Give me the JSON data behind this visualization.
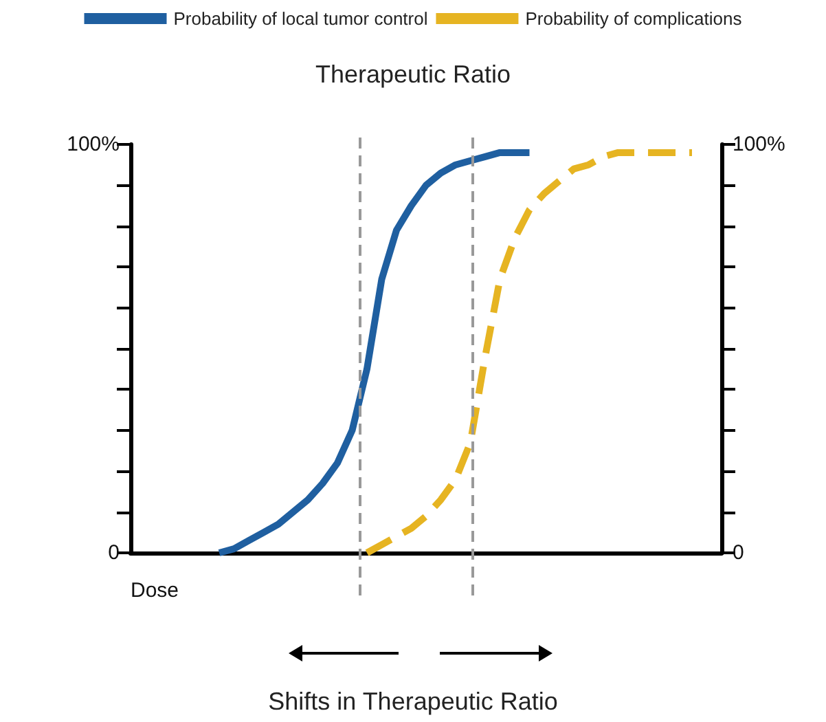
{
  "chart_data": {
    "type": "line",
    "title": "Therapeutic Ratio",
    "xlabel": "Dose",
    "annotations": [
      "Shifts in Therapeutic Ratio"
    ],
    "categories": [
      null,
      null,
      null,
      null,
      null,
      null,
      null,
      null,
      null,
      null,
      null,
      null,
      null,
      null,
      null,
      null,
      null,
      null,
      null,
      null,
      null,
      null,
      null,
      null,
      null,
      null,
      null,
      null,
      null,
      null,
      null,
      null,
      null,
      null,
      null,
      null,
      null,
      null,
      null,
      null,
      null
    ],
    "series": [
      {
        "name": "Probability of local tumor control",
        "color": "#1f5fa0",
        "line_style": "solid",
        "values": [
          null,
          null,
          null,
          null,
          null,
          null,
          0,
          1,
          3,
          5,
          7,
          10,
          13,
          17,
          22,
          30,
          45,
          67,
          79,
          85,
          90,
          93,
          95,
          96,
          97,
          98,
          98,
          98,
          null,
          null,
          null,
          null,
          null,
          null,
          null,
          null,
          null,
          null,
          null,
          null,
          null
        ]
      },
      {
        "name": "Probability of complications",
        "color": "#e6b422",
        "line_style": "dashed",
        "values": [
          null,
          null,
          null,
          null,
          null,
          null,
          null,
          null,
          null,
          null,
          null,
          null,
          null,
          null,
          null,
          null,
          0,
          2,
          4,
          6,
          9,
          13,
          18,
          27,
          48,
          67,
          77,
          84,
          88,
          91,
          94,
          95,
          97,
          98,
          98,
          98,
          98,
          98,
          98,
          null,
          null
        ]
      }
    ],
    "ylim": [
      0,
      100
    ],
    "yticks": [
      {
        "value": 0,
        "label": "0"
      },
      {
        "value": 10,
        "label": null
      },
      {
        "value": 20,
        "label": null
      },
      {
        "value": 30,
        "label": null
      },
      {
        "value": 40,
        "label": null
      },
      {
        "value": 50,
        "label": null
      },
      {
        "value": 60,
        "label": null
      },
      {
        "value": 70,
        "label": null
      },
      {
        "value": 80,
        "label": null
      },
      {
        "value": 90,
        "label": null
      },
      {
        "value": 100,
        "label": "100%"
      }
    ],
    "y2lim": [
      0,
      100
    ],
    "y2ticks": [
      {
        "value": 0,
        "label": "0"
      },
      {
        "value": 10,
        "label": null
      },
      {
        "value": 20,
        "label": null
      },
      {
        "value": 30,
        "label": null
      },
      {
        "value": 40,
        "label": null
      },
      {
        "value": 50,
        "label": null
      },
      {
        "value": 60,
        "label": null
      },
      {
        "value": 70,
        "label": null
      },
      {
        "value": 80,
        "label": null
      },
      {
        "value": 90,
        "label": null
      },
      {
        "value": 100,
        "label": "100%"
      }
    ],
    "grid": false,
    "legend": "top",
    "marker": "none",
    "tick_labels": "y"
  }
}
